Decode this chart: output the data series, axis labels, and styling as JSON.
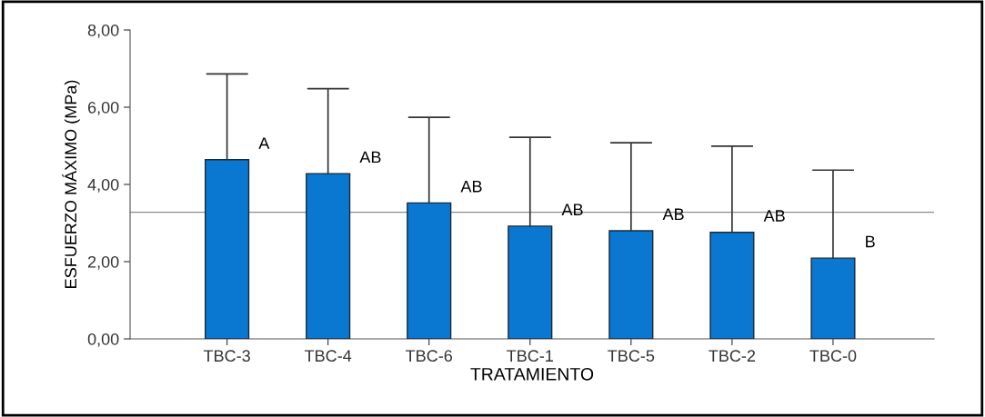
{
  "chart_data": {
    "type": "bar",
    "xlabel": "TRATAMIENTO",
    "ylabel": "ESFUERZO MÁXIMO (MPa)",
    "categories": [
      "TBC-3",
      "TBC-4",
      "TBC-6",
      "TBC-1",
      "TBC-5",
      "TBC-2",
      "TBC-0"
    ],
    "values": [
      4.64,
      4.28,
      3.52,
      2.92,
      2.8,
      2.76,
      2.09
    ],
    "errors": [
      [
        4.64,
        6.86
      ],
      [
        4.28,
        6.48
      ],
      [
        3.52,
        5.74
      ],
      [
        2.92,
        5.22
      ],
      [
        2.8,
        5.08
      ],
      [
        2.76,
        4.99
      ],
      [
        2.09,
        4.37
      ]
    ],
    "color": "#0a78d0",
    "ylim": [
      0,
      8
    ],
    "yticks": [
      {
        "value": 0,
        "label": "0,00"
      },
      {
        "value": 2,
        "label": "2,00"
      },
      {
        "value": 4,
        "label": "4,00"
      },
      {
        "value": 6,
        "label": "6,00"
      },
      {
        "value": 8,
        "label": "8,00"
      }
    ],
    "ref_lines": [
      {
        "axis": "y",
        "value": 3.28,
        "label": null,
        "color": "#8c8c8c"
      }
    ],
    "annotations": [
      "A",
      "AB",
      "AB",
      "AB",
      "AB",
      "AB",
      "B"
    ],
    "grid": false,
    "legend": false
  }
}
